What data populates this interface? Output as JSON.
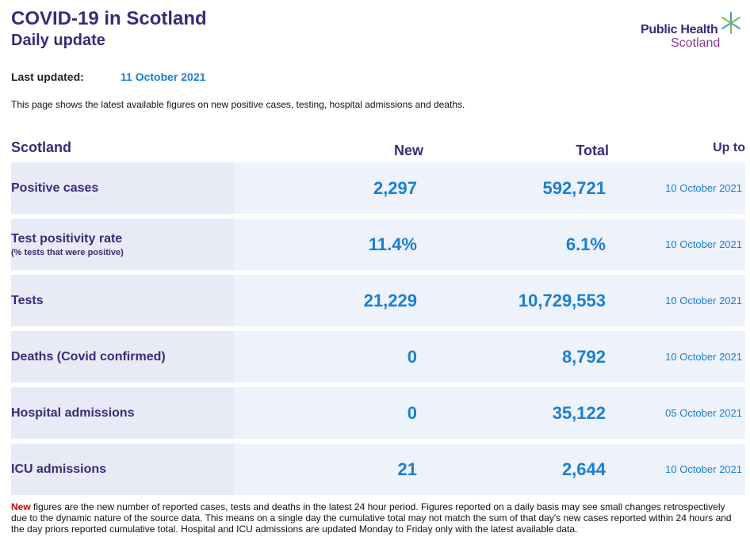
{
  "header": {
    "title": "COVID-19 in Scotland",
    "subtitle": "Daily update"
  },
  "logo": {
    "line1": "Public Health",
    "line2": "Scotland",
    "icon": "star-burst-icon"
  },
  "updated": {
    "label": "Last updated:",
    "value": "11 October 2021"
  },
  "intro": "This page shows the latest available figures on new positive cases, testing, hospital admissions and deaths.",
  "table": {
    "headers": {
      "region": "Scotland",
      "new": "New",
      "total": "Total",
      "upto": "Up to"
    },
    "rows": [
      {
        "label": "Positive cases",
        "sub": "",
        "new": "2,297",
        "total": "592,721",
        "upto": "10 October 2021"
      },
      {
        "label": "Test positivity rate",
        "sub": "(% tests that were positive)",
        "new": "11.4%",
        "total": "6.1%",
        "upto": "10 October 2021"
      },
      {
        "label": "Tests",
        "sub": "",
        "new": "21,229",
        "total": "10,729,553",
        "upto": "10 October 2021"
      },
      {
        "label": "Deaths (Covid confirmed)",
        "sub": "",
        "new": "0",
        "total": "8,792",
        "upto": "10 October 2021"
      },
      {
        "label": "Hospital admissions",
        "sub": "",
        "new": "0",
        "total": "35,122",
        "upto": "05 October 2021"
      },
      {
        "label": "ICU admissions",
        "sub": "",
        "new": "21",
        "total": "2,644",
        "upto": "10 October 2021"
      }
    ]
  },
  "footnote": {
    "highlight": "New",
    "text": " figures are the new number of reported cases, tests and deaths in the latest 24 hour period. Figures reported on a daily basis may see small changes retrospectively due to the dynamic nature of the source data. This means on a single day the cumulative total may not match the sum of that day's new cases reported within 24 hours and the day priors reported cumulative total. Hospital and ICU admissions are updated Monday to Friday only with the latest available data."
  },
  "colors": {
    "brand_purple": "#3b2a78",
    "value_blue": "#1a7fd0",
    "highlight_red": "#cc0000",
    "row_bg": "#eef2fb"
  }
}
